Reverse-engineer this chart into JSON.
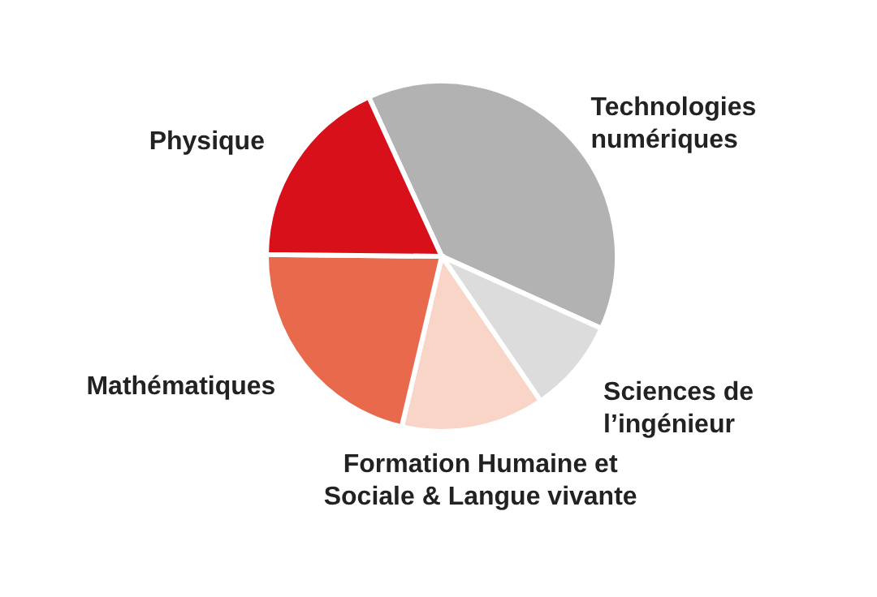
{
  "chart_data": {
    "type": "pie",
    "categories": [
      "Technologies numériques",
      "Sciences de l’ingénieur",
      "Formation Humaine et Sociale & Langue vivante",
      "Mathématiques",
      "Physique"
    ],
    "values": [
      38.6,
      8.7,
      13.2,
      21.5,
      18.0
    ],
    "colors": [
      "#b3b2b2",
      "#dcdcdc",
      "#f9d5c7",
      "#e8694b",
      "#d7101a"
    ]
  }
}
